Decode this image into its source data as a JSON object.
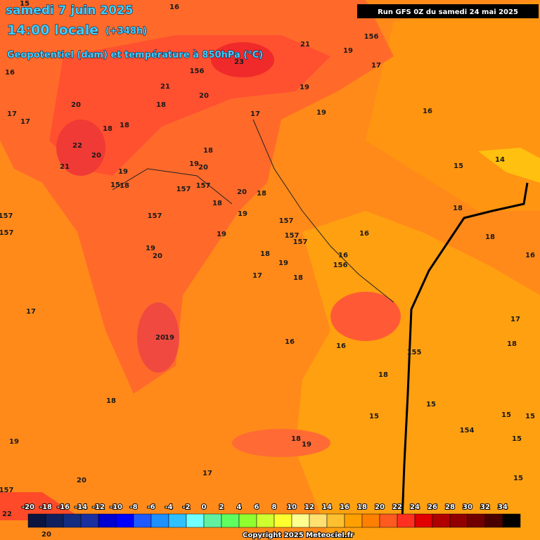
{
  "header": {
    "date": "samedi 7 juin 2025",
    "time": "14:00 locale",
    "lead": "(+348h)",
    "subtitle": "Geopotentiel (dam) et température à 850hPa (°C)",
    "run": "Run GFS 0Z du samedi 24 mai 2025"
  },
  "map_labels": [
    "15",
    "16",
    "21",
    "156",
    "19",
    "17",
    "23",
    "156",
    "20",
    "21",
    "19",
    "16",
    "17",
    "17",
    "20",
    "18",
    "19",
    "16",
    "17",
    "18",
    "18",
    "22",
    "20",
    "21",
    "18",
    "19",
    "20",
    "14",
    "15",
    "19",
    "15",
    "18",
    "157",
    "157",
    "20",
    "18",
    "18",
    "18",
    "157",
    "19",
    "157",
    "16",
    "157",
    "157",
    "157",
    "157",
    "19",
    "18",
    "19",
    "20",
    "18",
    "16",
    "19",
    "156",
    "16",
    "17",
    "18",
    "17",
    "17",
    "20",
    "19",
    "18",
    "16",
    "16",
    "155",
    "18",
    "18",
    "15",
    "15",
    "15",
    "154",
    "15",
    "15",
    "18",
    "19",
    "19",
    "17",
    "20",
    "15",
    "157",
    "22",
    "20"
  ],
  "colorbar": {
    "labels": [
      "-20",
      "-18",
      "-16",
      "-14",
      "-12",
      "-10",
      "-8",
      "-6",
      "-4",
      "-2",
      "0",
      "2",
      "4",
      "6",
      "8",
      "10",
      "12",
      "14",
      "16",
      "18",
      "20",
      "22",
      "24",
      "26",
      "28",
      "30",
      "32",
      "34"
    ]
  },
  "footer": {
    "copyright": "Copyright 2025 Meteociel.fr"
  }
}
